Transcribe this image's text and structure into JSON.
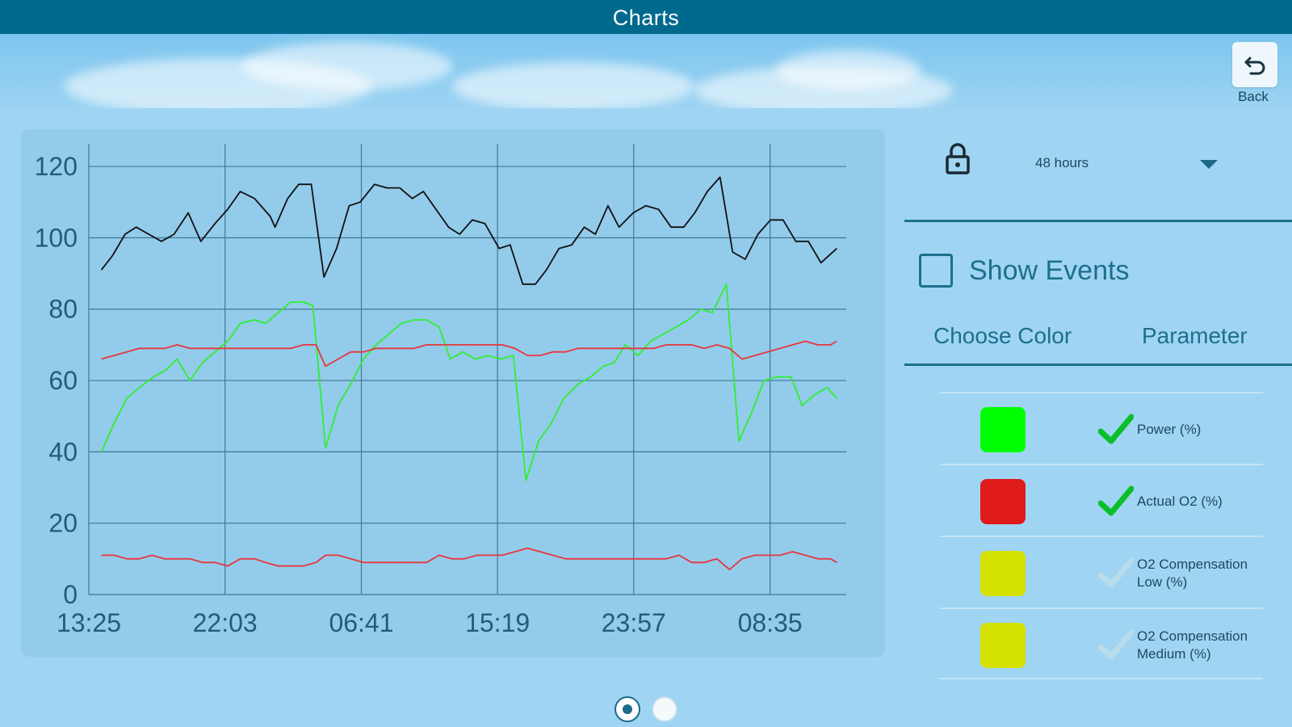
{
  "app": {
    "title": "Charts"
  },
  "header": {
    "back_label": "Back"
  },
  "panel": {
    "time_range": "48 hours",
    "show_events_label": "Show Events",
    "show_events_checked": false,
    "col_color": "Choose Color",
    "col_parameter": "Parameter",
    "rows": [
      {
        "color": "#00ff00",
        "label": "Power  (%)",
        "checked": true
      },
      {
        "color": "#e01b1b",
        "label": "Actual O2  (%)",
        "checked": true
      },
      {
        "color": "#d4e000",
        "label": "O2 Compensation Low (%)",
        "checked": false
      },
      {
        "color": "#d4e000",
        "label": "O2 Compensation Medium (%)",
        "checked": false
      }
    ]
  },
  "pager": {
    "count": 2,
    "active": 1
  },
  "chart_data": {
    "type": "line",
    "title": "",
    "ylim": [
      0,
      125
    ],
    "yticks": [
      "0",
      "20",
      "40",
      "60",
      "80",
      "100",
      "120"
    ],
    "xtick_labels": [
      "13:25",
      "22:03",
      "06:41",
      "15:19",
      "23:57",
      "08:35"
    ],
    "xtick_hours": [
      0,
      8.63,
      17.27,
      25.9,
      34.53,
      43.17
    ],
    "xlim_hours": [
      0,
      48
    ],
    "grid": true,
    "series": [
      {
        "color": "#111111",
        "points": [
          [
            0.8,
            91
          ],
          [
            1.5,
            95
          ],
          [
            2.3,
            101
          ],
          [
            3,
            103
          ],
          [
            3.8,
            101
          ],
          [
            4.6,
            99
          ],
          [
            5.4,
            101
          ],
          [
            6.3,
            107
          ],
          [
            7.1,
            99
          ],
          [
            8,
            104
          ],
          [
            8.8,
            108
          ],
          [
            9.6,
            113
          ],
          [
            10.5,
            111
          ],
          [
            11.5,
            106
          ],
          [
            11.8,
            103
          ],
          [
            12.6,
            111
          ],
          [
            13.3,
            115
          ],
          [
            14.1,
            115
          ],
          [
            14.9,
            89
          ],
          [
            15.7,
            97
          ],
          [
            16.5,
            109
          ],
          [
            17.2,
            110
          ],
          [
            18.1,
            115
          ],
          [
            18.9,
            114
          ],
          [
            19.7,
            114
          ],
          [
            20.5,
            111
          ],
          [
            21.2,
            113
          ],
          [
            22,
            108
          ],
          [
            22.8,
            103
          ],
          [
            23.5,
            101
          ],
          [
            24.3,
            105
          ],
          [
            25.1,
            104
          ],
          [
            26,
            97
          ],
          [
            26.7,
            98
          ],
          [
            27.5,
            87
          ],
          [
            28.3,
            87
          ],
          [
            29,
            91
          ],
          [
            29.8,
            97
          ],
          [
            30.6,
            98
          ],
          [
            31.4,
            103
          ],
          [
            32.1,
            101
          ],
          [
            32.9,
            109
          ],
          [
            33.6,
            103
          ],
          [
            34.5,
            107
          ],
          [
            35.3,
            109
          ],
          [
            36.1,
            108
          ],
          [
            36.9,
            103
          ],
          [
            37.7,
            103
          ],
          [
            38.4,
            107
          ],
          [
            39.2,
            113
          ],
          [
            40,
            117
          ],
          [
            40.8,
            96
          ],
          [
            41.6,
            94
          ],
          [
            42.4,
            101
          ],
          [
            43.2,
            105
          ],
          [
            44,
            105
          ],
          [
            44.8,
            99
          ],
          [
            45.6,
            99
          ],
          [
            46.4,
            93
          ],
          [
            47.4,
            97
          ]
        ]
      },
      {
        "color": "#2ef02e",
        "points": [
          [
            0.8,
            40
          ],
          [
            1.6,
            48
          ],
          [
            2.4,
            55
          ],
          [
            3.2,
            58
          ],
          [
            4.1,
            61
          ],
          [
            4.9,
            63
          ],
          [
            5.6,
            66
          ],
          [
            6.4,
            60
          ],
          [
            7.2,
            65
          ],
          [
            8,
            68
          ],
          [
            8.8,
            71
          ],
          [
            9.6,
            76
          ],
          [
            10.5,
            77
          ],
          [
            11.2,
            76
          ],
          [
            12,
            79
          ],
          [
            12.8,
            82
          ],
          [
            13.6,
            82
          ],
          [
            14.2,
            81
          ],
          [
            15,
            41
          ],
          [
            15.8,
            53
          ],
          [
            16.6,
            59
          ],
          [
            17.4,
            66
          ],
          [
            18.2,
            70
          ],
          [
            19,
            73
          ],
          [
            19.8,
            76
          ],
          [
            20.6,
            77
          ],
          [
            21.4,
            77
          ],
          [
            22.2,
            75
          ],
          [
            22.9,
            66
          ],
          [
            23.7,
            68
          ],
          [
            24.5,
            66
          ],
          [
            25.3,
            67
          ],
          [
            26.1,
            66
          ],
          [
            26.9,
            67
          ],
          [
            27.7,
            32
          ],
          [
            28.5,
            43
          ],
          [
            29.3,
            48
          ],
          [
            30.1,
            55
          ],
          [
            31,
            59
          ],
          [
            31.8,
            61
          ],
          [
            32.6,
            64
          ],
          [
            33.3,
            65
          ],
          [
            34,
            70
          ],
          [
            34.8,
            67
          ],
          [
            35.6,
            71
          ],
          [
            36.4,
            73
          ],
          [
            37.2,
            75
          ],
          [
            38,
            77
          ],
          [
            38.8,
            80
          ],
          [
            39.5,
            79
          ],
          [
            40.4,
            87
          ],
          [
            41.2,
            43
          ],
          [
            42,
            51
          ],
          [
            42.8,
            60
          ],
          [
            43.6,
            61
          ],
          [
            44.5,
            61
          ],
          [
            45.2,
            53
          ],
          [
            46,
            56
          ],
          [
            46.8,
            58
          ],
          [
            47.4,
            55
          ]
        ]
      },
      {
        "color": "#e8363a",
        "points": [
          [
            0.8,
            66
          ],
          [
            1.6,
            67
          ],
          [
            2.4,
            68
          ],
          [
            3.2,
            69
          ],
          [
            4,
            69
          ],
          [
            4.8,
            69
          ],
          [
            5.6,
            70
          ],
          [
            6.4,
            69
          ],
          [
            7.2,
            69
          ],
          [
            8,
            69
          ],
          [
            8.8,
            69
          ],
          [
            9.6,
            69
          ],
          [
            10.5,
            69
          ],
          [
            11.2,
            69
          ],
          [
            12,
            69
          ],
          [
            12.8,
            69
          ],
          [
            13.6,
            70
          ],
          [
            14.4,
            70
          ],
          [
            15,
            64
          ],
          [
            15.8,
            66
          ],
          [
            16.6,
            68
          ],
          [
            17.4,
            68
          ],
          [
            18.2,
            69
          ],
          [
            19,
            69
          ],
          [
            19.8,
            69
          ],
          [
            20.6,
            69
          ],
          [
            21.4,
            70
          ],
          [
            22.2,
            70
          ],
          [
            23,
            70
          ],
          [
            23.8,
            70
          ],
          [
            24.6,
            70
          ],
          [
            25.4,
            70
          ],
          [
            26.2,
            70
          ],
          [
            27,
            69
          ],
          [
            27.8,
            67
          ],
          [
            28.6,
            67
          ],
          [
            29.4,
            68
          ],
          [
            30.2,
            68
          ],
          [
            31,
            69
          ],
          [
            31.8,
            69
          ],
          [
            32.6,
            69
          ],
          [
            33.4,
            69
          ],
          [
            34.2,
            69
          ],
          [
            35,
            69
          ],
          [
            35.8,
            69
          ],
          [
            36.6,
            70
          ],
          [
            37.4,
            70
          ],
          [
            38.2,
            70
          ],
          [
            39,
            69
          ],
          [
            39.8,
            70
          ],
          [
            40.6,
            69
          ],
          [
            41.4,
            66
          ],
          [
            42.2,
            67
          ],
          [
            43,
            68
          ],
          [
            43.8,
            69
          ],
          [
            44.6,
            70
          ],
          [
            45.4,
            71
          ],
          [
            46.2,
            70
          ],
          [
            47,
            70
          ],
          [
            47.4,
            71
          ]
        ]
      },
      {
        "color": "#e8363a",
        "points": [
          [
            0.8,
            11
          ],
          [
            1.6,
            11
          ],
          [
            2.4,
            10
          ],
          [
            3.2,
            10
          ],
          [
            4,
            11
          ],
          [
            4.8,
            10
          ],
          [
            5.6,
            10
          ],
          [
            6.4,
            10
          ],
          [
            7.2,
            9
          ],
          [
            8,
            9
          ],
          [
            8.8,
            8
          ],
          [
            9.6,
            10
          ],
          [
            10.5,
            10
          ],
          [
            11.2,
            9
          ],
          [
            12,
            8
          ],
          [
            12.8,
            8
          ],
          [
            13.6,
            8
          ],
          [
            14.4,
            9
          ],
          [
            15,
            11
          ],
          [
            15.8,
            11
          ],
          [
            16.6,
            10
          ],
          [
            17.4,
            9
          ],
          [
            18.2,
            9
          ],
          [
            19,
            9
          ],
          [
            19.8,
            9
          ],
          [
            20.6,
            9
          ],
          [
            21.4,
            9
          ],
          [
            22.2,
            11
          ],
          [
            23,
            10
          ],
          [
            23.8,
            10
          ],
          [
            24.6,
            11
          ],
          [
            25.4,
            11
          ],
          [
            26.2,
            11
          ],
          [
            27,
            12
          ],
          [
            27.8,
            13
          ],
          [
            28.6,
            12
          ],
          [
            29.4,
            11
          ],
          [
            30.2,
            10
          ],
          [
            31,
            10
          ],
          [
            31.8,
            10
          ],
          [
            32.6,
            10
          ],
          [
            33.4,
            10
          ],
          [
            34.2,
            10
          ],
          [
            35,
            10
          ],
          [
            35.8,
            10
          ],
          [
            36.6,
            10
          ],
          [
            37.4,
            11
          ],
          [
            38.2,
            9
          ],
          [
            39,
            9
          ],
          [
            39.8,
            10
          ],
          [
            40.6,
            7
          ],
          [
            41.4,
            10
          ],
          [
            42.2,
            11
          ],
          [
            43,
            11
          ],
          [
            43.8,
            11
          ],
          [
            44.6,
            12
          ],
          [
            45.4,
            11
          ],
          [
            46.2,
            10
          ],
          [
            47,
            10
          ],
          [
            47.4,
            9
          ]
        ]
      }
    ]
  }
}
